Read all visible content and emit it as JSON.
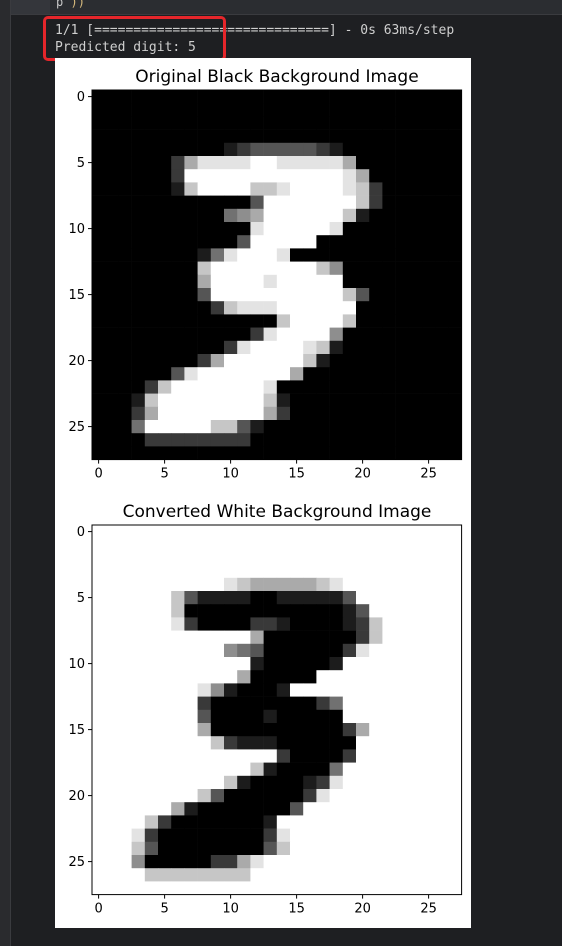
{
  "window": {
    "top_text_fragment": "p",
    "top_text_accent": "))"
  },
  "console": {
    "progress_line": "1/1 [==============================] - 0s 63ms/step",
    "prediction_line": "Predicted digit: 5"
  },
  "colors": {
    "highlight_box": "#e5262b",
    "background": "#1e1f22"
  },
  "chart_data": [
    {
      "type": "heatmap",
      "title": "Original Black Background Image",
      "colormap": "gray",
      "x_ticks": [
        0,
        5,
        10,
        15,
        20,
        25
      ],
      "y_ticks": [
        0,
        5,
        10,
        15,
        20,
        25
      ],
      "xlim": [
        -0.5,
        27.5
      ],
      "ylim": [
        27.5,
        -0.5
      ],
      "grid": false,
      "pixels": [
        "............................",
        "............................",
        "............................",
        "............................",
        "..........123333321.........",
        "......26888899888886........",
        "......299999999999986.......",
        "......1799997789999872......",
        "............3999999972......",
        "..........45699999971.......",
        "............8999998.........",
        "...........399999...........",
        "........1489998.............",
        "........79999999975.........",
        "........69999899999.........",
        "........3999999999973.......",
        ".........27888999999........",
        "..............799997........",
        "............2899995.........",
        "..........289999871.........",
        "........2699999971..........",
        "......3899999996............",
        "....2799999998..............",
        "...179999999971.............",
        "...269999999962.............",
        "...4999997731...............",
        "....22222222................",
        "............................"
      ]
    },
    {
      "type": "heatmap",
      "title": "Converted White Background Image",
      "colormap": "gray_inverted",
      "x_ticks": [
        0,
        5,
        10,
        15,
        20,
        25
      ],
      "y_ticks": [
        0,
        5,
        10,
        15,
        20,
        25
      ],
      "xlim": [
        -0.5,
        27.5
      ],
      "ylim": [
        27.5,
        -0.5
      ],
      "grid": false,
      "pixels": "same_as_original_inverted"
    }
  ]
}
